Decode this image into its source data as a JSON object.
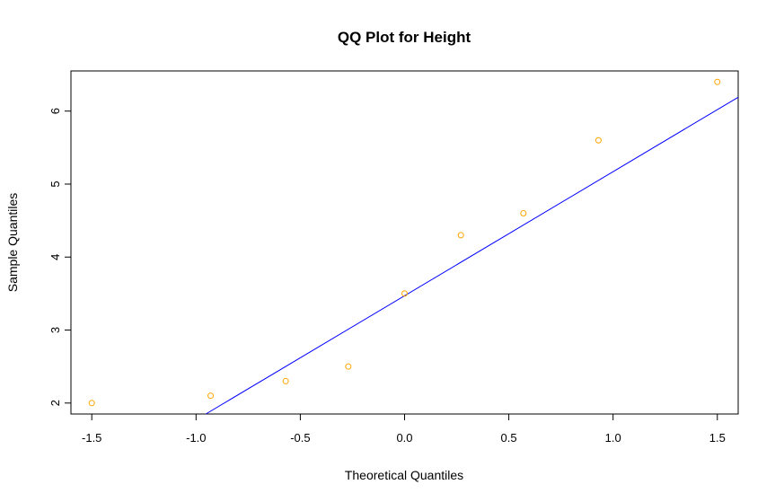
{
  "chart_data": {
    "type": "scatter",
    "title": "QQ Plot for Height",
    "xlabel": "Theoretical Quantiles",
    "ylabel": "Sample Quantiles",
    "xlim": [
      -1.6,
      1.6
    ],
    "ylim": [
      1.85,
      6.55
    ],
    "x_ticks": [
      -1.5,
      -1.0,
      -0.5,
      0.0,
      0.5,
      1.0,
      1.5
    ],
    "x_tick_labels": [
      "-1.5",
      "-1.0",
      "-0.5",
      "0.0",
      "0.5",
      "1.0",
      "1.5"
    ],
    "y_ticks": [
      2,
      3,
      4,
      5,
      6
    ],
    "y_tick_labels": [
      "2",
      "3",
      "4",
      "5",
      "6"
    ],
    "points": [
      {
        "x": -1.5,
        "y": 2.0
      },
      {
        "x": -0.93,
        "y": 2.1
      },
      {
        "x": -0.57,
        "y": 2.3
      },
      {
        "x": -0.27,
        "y": 2.5
      },
      {
        "x": 0.0,
        "y": 3.5
      },
      {
        "x": 0.27,
        "y": 4.3
      },
      {
        "x": 0.57,
        "y": 4.6
      },
      {
        "x": 0.93,
        "y": 5.6
      },
      {
        "x": 1.5,
        "y": 6.4
      }
    ],
    "reference_line": {
      "intercept": 3.47,
      "slope": 1.7
    },
    "point_color": "#FFA500",
    "line_color": "#0000FF",
    "grid": false,
    "legend": "none"
  }
}
